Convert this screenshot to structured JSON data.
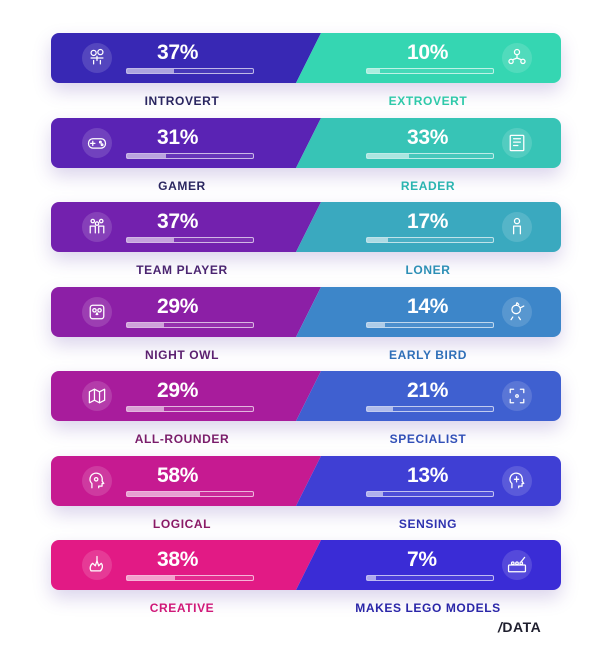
{
  "rows": [
    {
      "left": {
        "label": "INTROVERT",
        "percent": "37%",
        "value": 0.37,
        "icon": "brain-icon"
      },
      "right": {
        "label": "EXTROVERT",
        "percent": "10%",
        "value": 0.1,
        "icon": "people-network-icon"
      },
      "colors": {
        "left": "#3828b4",
        "right": "#35d6b2",
        "leftLabel": "#2a2660",
        "rightLabel": "#2fc9a9"
      }
    },
    {
      "left": {
        "label": "GAMER",
        "percent": "31%",
        "value": 0.31,
        "icon": "gamepad-icon"
      },
      "right": {
        "label": "READER",
        "percent": "33%",
        "value": 0.33,
        "icon": "book-icon"
      },
      "colors": {
        "left": "#5a23b4",
        "right": "#37c4b6",
        "leftLabel": "#2a2660",
        "rightLabel": "#2ab4b0"
      }
    },
    {
      "left": {
        "label": "TEAM PLAYER",
        "percent": "37%",
        "value": 0.37,
        "icon": "team-icon"
      },
      "right": {
        "label": "LONER",
        "percent": "17%",
        "value": 0.17,
        "icon": "person-icon"
      },
      "colors": {
        "left": "#7321ae",
        "right": "#3aa9bf",
        "leftLabel": "#4a2470",
        "rightLabel": "#2c8fb5"
      }
    },
    {
      "left": {
        "label": "NIGHT OWL",
        "percent": "29%",
        "value": 0.29,
        "icon": "owl-icon"
      },
      "right": {
        "label": "EARLY BIRD",
        "percent": "14%",
        "value": 0.14,
        "icon": "rooster-icon"
      },
      "colors": {
        "left": "#8c1fa6",
        "right": "#3d86c9",
        "leftLabel": "#5c2070",
        "rightLabel": "#2f6fb8"
      }
    },
    {
      "left": {
        "label": "ALL-ROUNDER",
        "percent": "29%",
        "value": 0.29,
        "icon": "map-icon"
      },
      "right": {
        "label": "SPECIALIST",
        "percent": "21%",
        "value": 0.21,
        "icon": "target-icon"
      },
      "colors": {
        "left": "#a81c9c",
        "right": "#3f60d0",
        "leftLabel": "#7a1d6a",
        "rightLabel": "#3150b7"
      }
    },
    {
      "left": {
        "label": "LOGICAL",
        "percent": "58%",
        "value": 0.58,
        "icon": "head-gear-icon"
      },
      "right": {
        "label": "SENSING",
        "percent": "13%",
        "value": 0.13,
        "icon": "head-idea-icon"
      },
      "colors": {
        "left": "#c61a91",
        "right": "#3f3fd4",
        "leftLabel": "#8a1a66",
        "rightLabel": "#2f33b0"
      }
    },
    {
      "left": {
        "label": "CREATIVE",
        "percent": "38%",
        "value": 0.38,
        "icon": "hand-brush-icon"
      },
      "right": {
        "label": "MAKES LEGO MODELS",
        "percent": "7%",
        "value": 0.07,
        "icon": "lego-icon"
      },
      "colors": {
        "left": "#e21a85",
        "right": "#3a2cd6",
        "leftLabel": "#d01878",
        "rightLabel": "#2a26a8"
      }
    }
  ],
  "logo": {
    "text": "DATA",
    "slash": "/"
  }
}
